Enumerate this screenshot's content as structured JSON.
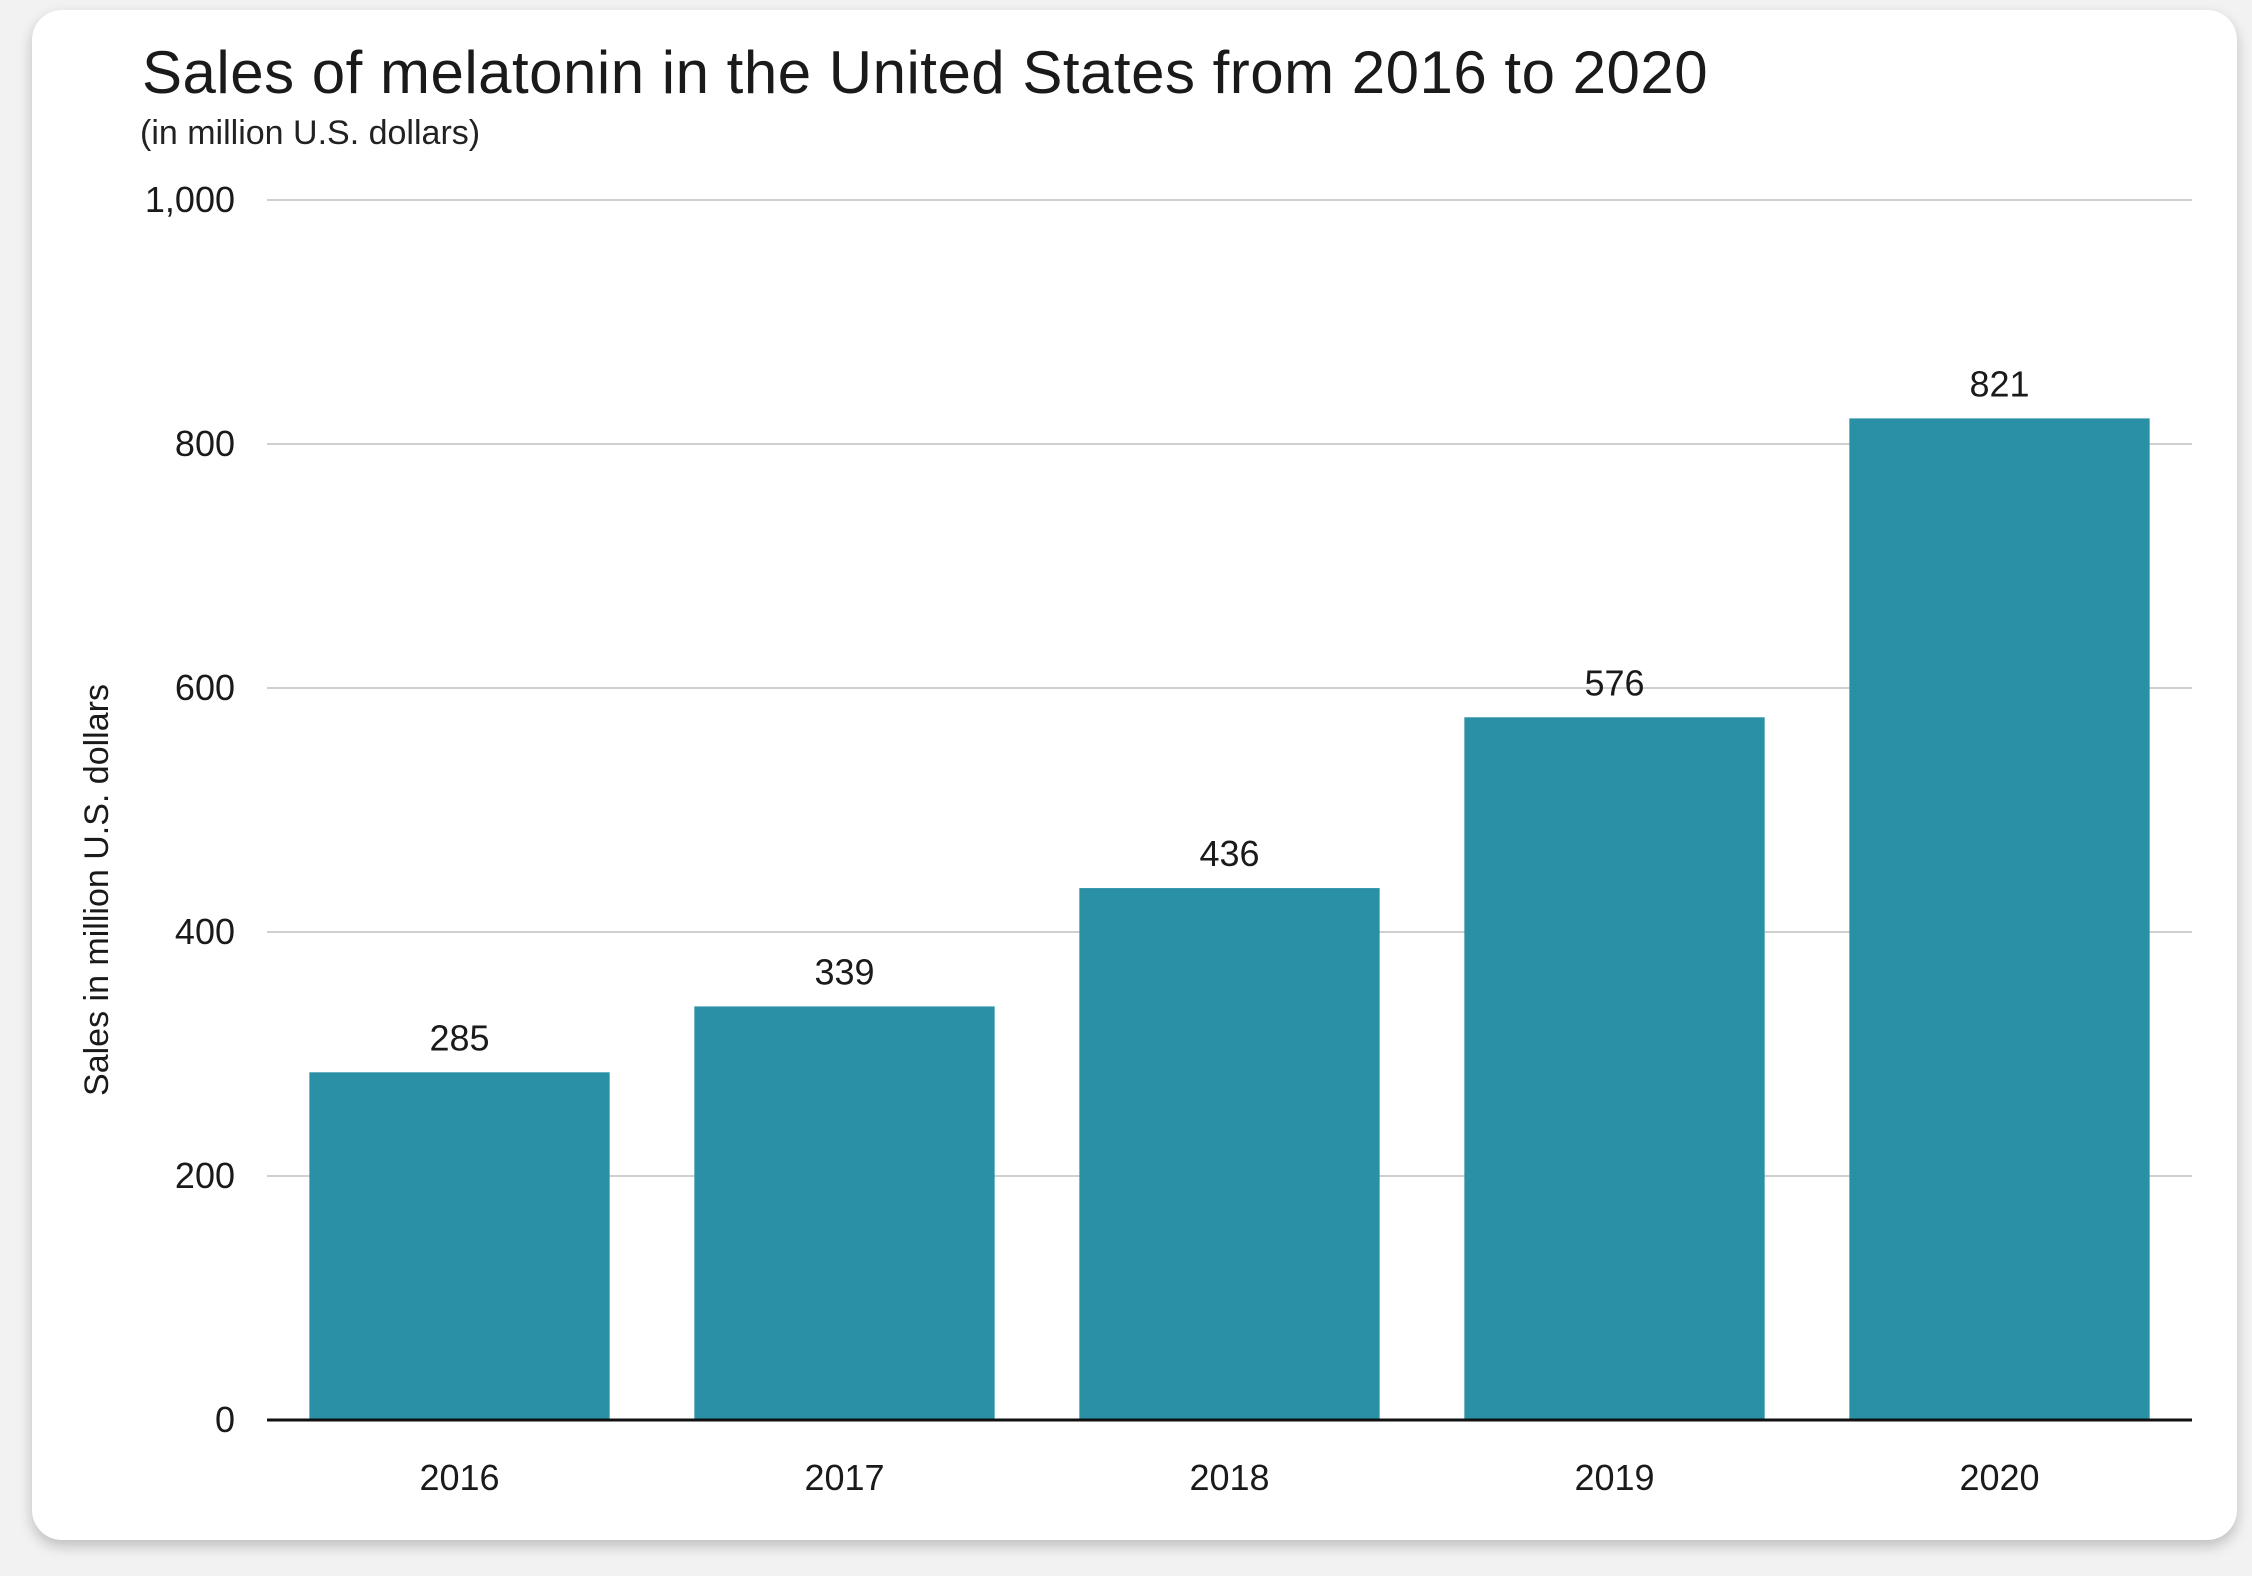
{
  "chart_data": {
    "type": "bar",
    "title": "Sales of melatonin in the United States from 2016 to 2020",
    "subtitle": "(in million U.S. dollars)",
    "xlabel": "",
    "ylabel": "Sales in million U.S. dollars",
    "categories": [
      "2016",
      "2017",
      "2018",
      "2019",
      "2020"
    ],
    "values": [
      285,
      339,
      436,
      576,
      821
    ],
    "data_labels": [
      "285",
      "339",
      "436",
      "576",
      "821"
    ],
    "ylim": [
      0,
      1000
    ],
    "yticks": [
      0,
      200,
      400,
      600,
      800,
      1000
    ],
    "ytick_labels": [
      "0",
      "200",
      "400",
      "600",
      "800",
      "1,000"
    ],
    "grid": true,
    "legend": "none",
    "bar_color": "#2a90a6",
    "grid_color": "#d0d0d0",
    "axis_color": "#111111"
  }
}
